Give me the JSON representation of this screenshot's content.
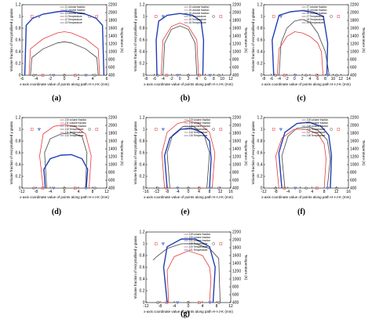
{
  "figure": {
    "common_xlabel": "x-axis coordinate value of points along path H-I-J-K (mm)",
    "common_ylabel_left": "Volume fraction of recrystallised γ grains",
    "common_ylabel_right": "Temperature (K)"
  },
  "chart_data": [
    {
      "panel": "(a)",
      "type": "line",
      "xlim": [
        -6,
        6
      ],
      "xticks": [
        -6,
        -4,
        -2,
        0,
        2,
        4,
        6
      ],
      "yticks_left": [
        0,
        0.2,
        0.4,
        0.6,
        0.8,
        1.0,
        1.2
      ],
      "yticks_right": [
        400,
        600,
        800,
        1000,
        1200,
        1400,
        1600,
        1800,
        2000,
        2200
      ],
      "legend": [
        "J1 volume fraction",
        "J2 volume fraction",
        "J3 volume fraction",
        "J1 Temperature",
        "J2 Temperature",
        "J3 Temperature"
      ],
      "series": [
        {
          "name": "J1 Temperature",
          "color": "#444444",
          "x": [
            -4.8,
            -4.6,
            -3,
            -1,
            0,
            1,
            3,
            4.6,
            4.8
          ],
          "y": [
            0.0,
            0.3,
            0.45,
            0.55,
            0.57,
            0.55,
            0.45,
            0.3,
            0.0
          ]
        },
        {
          "name": "J2 Temperature",
          "color": "#e8393a",
          "x": [
            -5.0,
            -4.8,
            -3,
            -1,
            0,
            1,
            3,
            4.8,
            5.0
          ],
          "y": [
            0.0,
            0.45,
            0.62,
            0.72,
            0.74,
            0.72,
            0.62,
            0.45,
            0.0
          ]
        },
        {
          "name": "J3 Temperature",
          "color": "#1f3fb4",
          "x": [
            -5.6,
            -5.4,
            -4.5,
            -3,
            -1,
            0,
            1,
            3,
            4.5,
            5.4,
            5.6
          ],
          "y": [
            0.0,
            0.85,
            0.97,
            1.04,
            1.08,
            1.09,
            1.08,
            1.04,
            0.97,
            0.85,
            0.0
          ]
        }
      ]
    },
    {
      "panel": "(b)",
      "type": "line",
      "xlim": [
        -8,
        12
      ],
      "xticks": [
        -8,
        -6,
        -4,
        -2,
        0,
        2,
        4,
        6,
        8,
        10,
        12
      ],
      "yticks_left": [
        0,
        0.2,
        0.4,
        0.6,
        0.8,
        1.0,
        1.2
      ],
      "yticks_right": [
        400,
        600,
        800,
        1000,
        1200,
        1400,
        1600,
        1800,
        2000,
        2200
      ],
      "legend": [
        "J4 volume fraction",
        "J5 volume fraction",
        "J6 volume fraction",
        "J4 Temperature",
        "J5 Temperature",
        "J6 Temperature"
      ],
      "series": [
        {
          "name": "J4 Temperature",
          "color": "#444444",
          "x": [
            -4,
            -3.6,
            -2,
            0,
            2,
            3.6,
            4
          ],
          "y": [
            0.0,
            0.55,
            0.78,
            0.84,
            0.78,
            0.55,
            0.0
          ]
        },
        {
          "name": "J5 Temperature",
          "color": "#e8393a",
          "x": [
            -4.4,
            -4,
            -2,
            0,
            2,
            4,
            4.4
          ],
          "y": [
            0.0,
            0.6,
            0.83,
            0.89,
            0.83,
            0.6,
            0.0
          ]
        },
        {
          "name": "J6 Temperature",
          "color": "#1f3fb4",
          "x": [
            -5.4,
            -5.6,
            -5,
            -3,
            0,
            3,
            5,
            5.6,
            5.4
          ],
          "y": [
            0.0,
            0.6,
            0.92,
            1.02,
            1.05,
            1.02,
            0.92,
            0.6,
            0.0
          ]
        }
      ]
    },
    {
      "panel": "(c)",
      "type": "line",
      "xlim": [
        -8,
        14
      ],
      "xticks": [
        -8,
        -6,
        -4,
        -2,
        0,
        2,
        4,
        6,
        8,
        10,
        12,
        14
      ],
      "yticks_left": [
        0,
        0.2,
        0.4,
        0.6,
        0.8,
        1.0,
        1.2
      ],
      "yticks_right": [
        400,
        600,
        800,
        1000,
        1200,
        1400,
        1600,
        1800,
        2000,
        2200
      ],
      "legend": [
        "J7 volume fraction",
        "J8 volume fraction",
        "J9 volume fraction",
        "J7 Temperature",
        "J8 Temperature",
        "J9 Temperature"
      ],
      "series": [
        {
          "name": "J7 Temperature",
          "color": "#444444",
          "x": [
            -4,
            -3.5,
            -2,
            0,
            2,
            4,
            6,
            8,
            9
          ],
          "y": [
            0.0,
            0.55,
            0.8,
            0.92,
            0.95,
            0.9,
            0.72,
            0.4,
            0.0
          ]
        },
        {
          "name": "J8 Temperature",
          "color": "#e8393a",
          "x": [
            -4.5,
            -4,
            -2,
            0,
            2,
            4,
            6,
            7,
            7.4
          ],
          "y": [
            0.0,
            0.45,
            0.66,
            0.74,
            0.72,
            0.66,
            0.55,
            0.4,
            0.0
          ]
        },
        {
          "name": "J9 Temperature",
          "color": "#1f3fb4",
          "x": [
            -5.4,
            -5.8,
            -4,
            -1,
            2,
            5,
            7.5,
            8.6,
            8.4
          ],
          "y": [
            0.0,
            0.6,
            1.02,
            1.08,
            1.1,
            1.07,
            1.0,
            0.55,
            0.0
          ]
        }
      ]
    },
    {
      "panel": "(d)",
      "type": "line",
      "xlim": [
        -12,
        12
      ],
      "xticks": [
        -12,
        -8,
        -4,
        0,
        4,
        8,
        12
      ],
      "yticks_left": [
        0,
        0.2,
        0.4,
        0.6,
        0.8,
        1.0,
        1.2
      ],
      "yticks_right": [
        400,
        600,
        800,
        1000,
        1200,
        1400,
        1600,
        1800,
        2000,
        2200
      ],
      "legend": [
        "J10 volume fraction",
        "J11 volume fraction",
        "J12 volume fraction",
        "J10 Temperature",
        "J11 Temperature",
        "J12 Temperature"
      ],
      "series": [
        {
          "name": "J10 Temperature",
          "color": "#444444",
          "x": [
            -5,
            -5.6,
            -4,
            -1,
            2,
            5,
            6.4,
            6
          ],
          "y": [
            0.0,
            0.6,
            0.84,
            0.92,
            0.94,
            0.88,
            0.6,
            0.0
          ]
        },
        {
          "name": "J11 Temperature",
          "color": "#e8393a",
          "x": [
            -6,
            -7,
            -6,
            -3,
            0,
            3,
            6,
            7.6,
            7
          ],
          "y": [
            0.0,
            0.55,
            0.92,
            1.05,
            1.08,
            1.05,
            0.92,
            0.55,
            0.0
          ]
        },
        {
          "name": "J12 Temperature",
          "color": "#1f3fb4",
          "x": [
            -5.4,
            -5.8,
            -4,
            -1,
            2,
            5,
            6.6,
            6.2
          ],
          "y": [
            0.0,
            0.32,
            0.5,
            0.56,
            0.57,
            0.5,
            0.32,
            0.0
          ]
        }
      ]
    },
    {
      "panel": "(e)",
      "type": "line",
      "xlim": [
        -16,
        16
      ],
      "xticks": [
        -16,
        -12,
        -8,
        -4,
        0,
        4,
        8,
        12,
        16
      ],
      "yticks_left": [
        0,
        0.2,
        0.4,
        0.6,
        0.8,
        1.0,
        1.2
      ],
      "yticks_right": [
        400,
        600,
        800,
        1000,
        1200,
        1400,
        1600,
        1800,
        2000,
        2200
      ],
      "legend": [
        "J13 volume fraction",
        "J14 volume fraction",
        "J15 volume fraction",
        "J13 Temperature",
        "J14 Temperature",
        "J15 Temperature"
      ],
      "series": [
        {
          "name": "J13 Temperature",
          "color": "#444444",
          "x": [
            -7,
            -8,
            -6,
            -2,
            2,
            6,
            8,
            7
          ],
          "y": [
            0.0,
            0.6,
            0.9,
            1.05,
            1.05,
            0.9,
            0.6,
            0.0
          ]
        },
        {
          "name": "J14 Temperature",
          "color": "#e8393a",
          "x": [
            -9,
            -10,
            -8,
            -4,
            0,
            4,
            8,
            10,
            9
          ],
          "y": [
            0.0,
            0.6,
            0.95,
            1.1,
            1.14,
            1.1,
            0.95,
            0.6,
            0.0
          ]
        },
        {
          "name": "J15 Temperature",
          "color": "#1f3fb4",
          "x": [
            -8,
            -9,
            -7,
            -3,
            1,
            5,
            8,
            8.6,
            8
          ],
          "y": [
            0.0,
            0.55,
            0.85,
            1.0,
            1.02,
            0.95,
            0.8,
            0.5,
            0.0
          ]
        }
      ]
    },
    {
      "panel": "(f)",
      "type": "line",
      "xlim": [
        -12,
        16
      ],
      "xticks": [
        -12,
        -8,
        -4,
        0,
        4,
        8,
        12,
        16
      ],
      "yticks_left": [
        0,
        0.2,
        0.4,
        0.6,
        0.8,
        1.0,
        1.2
      ],
      "yticks_right": [
        400,
        600,
        800,
        1000,
        1200,
        1400,
        1600,
        1800,
        2000,
        2200
      ],
      "legend": [
        "J16 volume fraction",
        "J17 volume fraction",
        "J18 volume fraction",
        "J16 Temperature",
        "J17 Temperature",
        "J18 Temperature"
      ],
      "series": [
        {
          "name": "J16 Temperature",
          "color": "#444444",
          "x": [
            -5,
            -6,
            -4,
            -1,
            3,
            6,
            9,
            10,
            9
          ],
          "y": [
            0.0,
            0.55,
            0.88,
            1.02,
            1.04,
            0.98,
            0.82,
            0.5,
            0.0
          ]
        },
        {
          "name": "J17 Temperature",
          "color": "#e8393a",
          "x": [
            -7,
            -8,
            -6,
            -2,
            2,
            6,
            8,
            8.6,
            8
          ],
          "y": [
            0.0,
            0.55,
            0.85,
            1.0,
            1.0,
            0.92,
            0.75,
            0.5,
            0.0
          ]
        },
        {
          "name": "J18 Temperature",
          "color": "#1f3fb4",
          "x": [
            -6,
            -7,
            -5,
            -1,
            3,
            7,
            9.5,
            10.4,
            10
          ],
          "y": [
            0.0,
            0.6,
            0.95,
            1.1,
            1.12,
            1.05,
            0.9,
            0.55,
            0.0
          ]
        }
      ]
    },
    {
      "panel": "(g)",
      "type": "line",
      "xlim": [
        -12,
        12
      ],
      "xticks": [
        -12,
        -8,
        -4,
        0,
        4,
        8,
        12
      ],
      "yticks_left": [
        0,
        0.2,
        0.4,
        0.6,
        0.8,
        1.0,
        1.2
      ],
      "yticks_right": [
        400,
        600,
        800,
        1000,
        1200,
        1400,
        1600,
        1800,
        2000,
        2200
      ],
      "legend": [
        "J19 volume fraction",
        "J20 volume fraction",
        "J21 volume fraction",
        "J19 Temperature",
        "J20 Temperature",
        "J21 Temperature"
      ],
      "series": [
        {
          "name": "J19 Temperature",
          "color": "#444444",
          "x": [
            -10,
            -9,
            -6,
            -2,
            2,
            6,
            8.6,
            9
          ],
          "y": [
            0.72,
            0.78,
            0.92,
            1.0,
            1.0,
            0.92,
            0.75,
            0.0
          ]
        },
        {
          "name": "J20 Temperature",
          "color": "#e8393a",
          "x": [
            -5.6,
            -6,
            -4,
            0,
            4,
            6,
            6.4,
            6
          ],
          "y": [
            0.0,
            0.55,
            0.78,
            0.88,
            0.8,
            0.6,
            0.4,
            0.0
          ]
        },
        {
          "name": "J21 Temperature",
          "color": "#1f3fb4",
          "x": [
            -6,
            -7,
            -6,
            -2,
            2,
            6,
            7.6,
            7
          ],
          "y": [
            0.0,
            0.6,
            0.95,
            1.08,
            1.08,
            0.95,
            0.6,
            0.0
          ]
        }
      ]
    }
  ]
}
